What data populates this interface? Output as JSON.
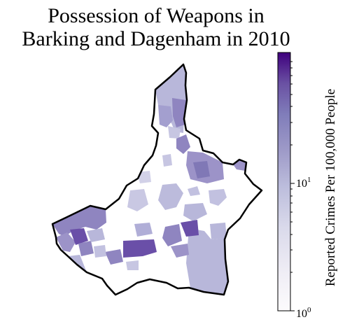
{
  "title_line1": "Possession of Weapons in",
  "title_line2": "Barking and Dagenham in 2010",
  "colorbar": {
    "label": "Reported Crimes Per 100,000 People",
    "scale": "log",
    "colormap": "Purples",
    "color_low": "#fcfbfd",
    "color_high": "#3f007d",
    "ticks": [
      {
        "base": "10",
        "exponent": "1",
        "value": 10
      },
      {
        "base": "10",
        "exponent": "0",
        "value": 1
      }
    ]
  },
  "colors": {
    "boundary": "#000000",
    "area_light": "#b8b7da",
    "area_medium": "#8f85c0",
    "area_dark": "#6a4fa8"
  }
}
